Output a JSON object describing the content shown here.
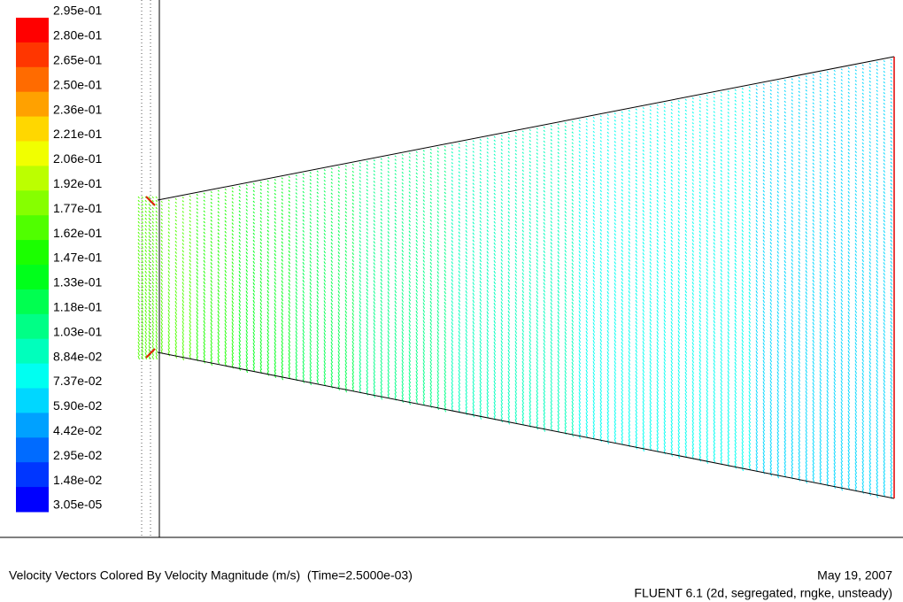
{
  "legend": {
    "labels": [
      "2.95e-01",
      "2.80e-01",
      "2.65e-01",
      "2.50e-01",
      "2.36e-01",
      "2.21e-01",
      "2.06e-01",
      "1.92e-01",
      "1.77e-01",
      "1.62e-01",
      "1.47e-01",
      "1.33e-01",
      "1.18e-01",
      "1.03e-01",
      "8.84e-02",
      "7.37e-02",
      "5.90e-02",
      "4.42e-02",
      "2.95e-02",
      "1.48e-02",
      "3.05e-05"
    ],
    "colors": [
      "#ff0000",
      "#ff3600",
      "#ff6b00",
      "#ffa100",
      "#ffd700",
      "#f1ff00",
      "#bcff00",
      "#86ff00",
      "#50ff00",
      "#1bff00",
      "#00ff1b",
      "#00ff50",
      "#00ff86",
      "#00ffbc",
      "#00fff1",
      "#00d7ff",
      "#00a1ff",
      "#006bff",
      "#0036ff",
      "#0000ff"
    ]
  },
  "footer": {
    "title": "Velocity Vectors Colored By Velocity Magnitude (m/s)  (Time=2.5000e-03)",
    "date": "May 19, 2007",
    "version": "FLUENT 6.1 (2d, segregated, rngke, unsteady)"
  }
}
